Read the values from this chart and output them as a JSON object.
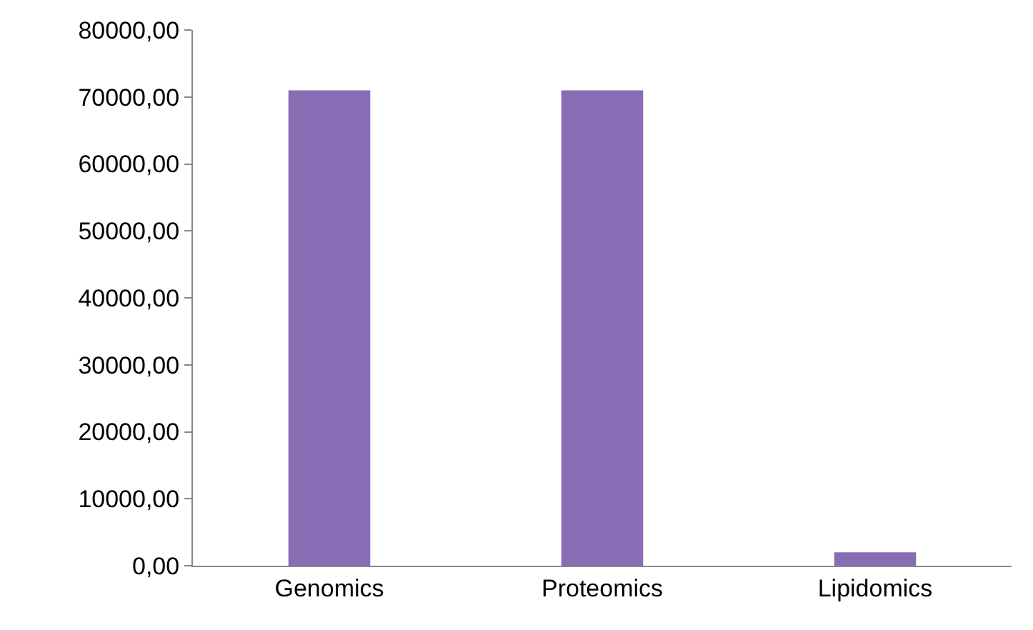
{
  "chart_data": {
    "type": "bar",
    "categories": [
      "Genomics",
      "Proteomics",
      "Lipidomics"
    ],
    "values": [
      71000,
      71000,
      2000
    ],
    "color": "#8a6cb5",
    "ylim": [
      0,
      80000
    ],
    "yticks": [
      {
        "value": 0,
        "label": "0,00"
      },
      {
        "value": 10000,
        "label": "10000,00"
      },
      {
        "value": 20000,
        "label": "20000,00"
      },
      {
        "value": 30000,
        "label": "30000,00"
      },
      {
        "value": 40000,
        "label": "40000,00"
      },
      {
        "value": 50000,
        "label": "50000,00"
      },
      {
        "value": 60000,
        "label": "60000,00"
      },
      {
        "value": 70000,
        "label": "70000,00"
      },
      {
        "value": 80000,
        "label": "80000,00"
      }
    ],
    "grid": false
  }
}
